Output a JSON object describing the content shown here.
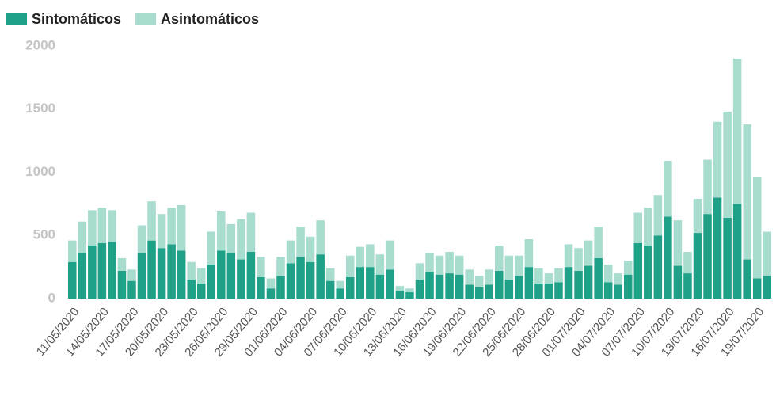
{
  "chart_data": {
    "type": "stacked-bar",
    "categories": [
      "11/05/2020",
      null,
      null,
      "14/05/2020",
      null,
      null,
      "17/05/2020",
      null,
      null,
      "20/05/2020",
      null,
      null,
      "23/05/2020",
      null,
      null,
      "26/05/2020",
      null,
      null,
      "29/05/2020",
      null,
      null,
      "01/06/2020",
      null,
      null,
      "04/06/2020",
      null,
      null,
      "07/06/2020",
      null,
      null,
      "10/06/2020",
      null,
      null,
      "13/06/2020",
      null,
      null,
      "16/06/2020",
      null,
      null,
      "19/06/2020",
      null,
      null,
      "22/06/2020",
      null,
      null,
      "25/06/2020",
      null,
      null,
      "28/06/2020",
      null,
      null,
      "01/07/2020",
      null,
      null,
      "04/07/2020",
      null,
      null,
      "07/07/2020",
      null,
      null,
      "10/07/2020",
      null,
      null,
      "13/07/2020",
      null,
      null,
      "16/07/2020",
      null,
      null,
      "19/07/2020",
      null
    ],
    "series": [
      {
        "name": "Sintomáticos",
        "color": "#1fa188",
        "values": [
          290,
          360,
          420,
          440,
          450,
          220,
          140,
          360,
          460,
          400,
          430,
          380,
          150,
          120,
          270,
          380,
          360,
          310,
          370,
          170,
          80,
          180,
          280,
          330,
          290,
          350,
          140,
          80,
          170,
          250,
          250,
          190,
          230,
          60,
          50,
          150,
          210,
          190,
          200,
          190,
          110,
          90,
          110,
          220,
          150,
          180,
          250,
          120,
          120,
          130,
          250,
          220,
          260,
          320,
          130,
          110,
          190,
          440,
          420,
          500,
          650,
          260,
          200,
          520,
          670,
          800,
          640,
          750,
          310,
          160,
          180
        ]
      },
      {
        "name": "Asintomáticos",
        "color": "#a8dccf",
        "values": [
          170,
          250,
          280,
          280,
          250,
          100,
          90,
          220,
          310,
          270,
          290,
          360,
          140,
          120,
          260,
          310,
          230,
          320,
          310,
          160,
          80,
          150,
          180,
          240,
          200,
          270,
          100,
          60,
          170,
          160,
          180,
          160,
          230,
          40,
          30,
          130,
          150,
          150,
          170,
          150,
          120,
          90,
          120,
          200,
          190,
          160,
          220,
          120,
          80,
          110,
          180,
          180,
          200,
          250,
          140,
          90,
          110,
          240,
          300,
          320,
          440,
          360,
          170,
          270,
          430,
          600,
          840,
          1150,
          1070,
          800,
          350
        ]
      }
    ],
    "ylim": [
      0,
      2000
    ],
    "yticks": [
      0,
      500,
      1000,
      1500,
      2000
    ],
    "grid": false
  }
}
